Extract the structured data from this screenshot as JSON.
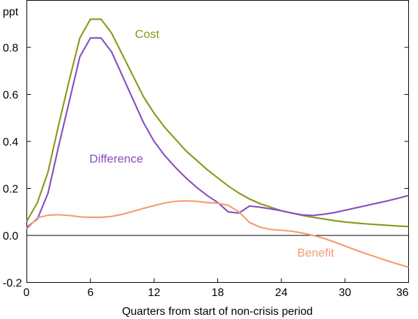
{
  "chart_data": {
    "type": "line",
    "title": "",
    "ylabel": "ppt",
    "xlabel": "Quarters from start of non-crisis period",
    "xlim": [
      0,
      36
    ],
    "ylim": [
      -0.2,
      1.0
    ],
    "x_ticks": [
      0,
      6,
      12,
      18,
      24,
      30,
      36
    ],
    "x_tick_labels": [
      "0",
      "6",
      "12",
      "18",
      "24",
      "30",
      "36"
    ],
    "y_ticks": [
      -0.2,
      0.0,
      0.2,
      0.4,
      0.6,
      0.8
    ],
    "y_tick_labels": [
      "-0.2",
      "0.0",
      "0.2",
      "0.4",
      "0.6",
      "0.8"
    ],
    "zero_line": true,
    "grid": false,
    "series": [
      {
        "name": "Cost",
        "color": "#8a9a1b",
        "label_at": [
          10.2,
          0.84
        ],
        "points": [
          [
            0,
            0.06
          ],
          [
            1,
            0.14
          ],
          [
            2,
            0.27
          ],
          [
            3,
            0.47
          ],
          [
            4,
            0.66
          ],
          [
            5,
            0.84
          ],
          [
            6,
            0.92
          ],
          [
            7,
            0.92
          ],
          [
            8,
            0.86
          ],
          [
            9,
            0.77
          ],
          [
            10,
            0.68
          ],
          [
            11,
            0.59
          ],
          [
            12,
            0.52
          ],
          [
            13,
            0.46
          ],
          [
            14,
            0.41
          ],
          [
            15,
            0.36
          ],
          [
            16,
            0.32
          ],
          [
            17,
            0.28
          ],
          [
            18,
            0.245
          ],
          [
            19,
            0.21
          ],
          [
            20,
            0.18
          ],
          [
            21,
            0.155
          ],
          [
            22,
            0.135
          ],
          [
            23,
            0.12
          ],
          [
            24,
            0.105
          ],
          [
            25,
            0.095
          ],
          [
            26,
            0.085
          ],
          [
            27,
            0.077
          ],
          [
            28,
            0.07
          ],
          [
            29,
            0.063
          ],
          [
            30,
            0.057
          ],
          [
            31,
            0.053
          ],
          [
            32,
            0.049
          ],
          [
            33,
            0.046
          ],
          [
            34,
            0.043
          ],
          [
            35,
            0.04
          ],
          [
            36,
            0.038
          ]
        ]
      },
      {
        "name": "Difference",
        "color": "#8a4fc0",
        "label_at": [
          5.9,
          0.31
        ],
        "points": [
          [
            0,
            0.035
          ],
          [
            1,
            0.07
          ],
          [
            2,
            0.18
          ],
          [
            3,
            0.38
          ],
          [
            4,
            0.57
          ],
          [
            5,
            0.76
          ],
          [
            6,
            0.84
          ],
          [
            7,
            0.84
          ],
          [
            8,
            0.78
          ],
          [
            9,
            0.68
          ],
          [
            10,
            0.58
          ],
          [
            11,
            0.48
          ],
          [
            12,
            0.4
          ],
          [
            13,
            0.34
          ],
          [
            14,
            0.29
          ],
          [
            15,
            0.245
          ],
          [
            16,
            0.205
          ],
          [
            17,
            0.17
          ],
          [
            18,
            0.14
          ],
          [
            19,
            0.1
          ],
          [
            20,
            0.095
          ],
          [
            21,
            0.125
          ],
          [
            22,
            0.12
          ],
          [
            23,
            0.113
          ],
          [
            24,
            0.105
          ],
          [
            25,
            0.095
          ],
          [
            26,
            0.087
          ],
          [
            27,
            0.085
          ],
          [
            28,
            0.09
          ],
          [
            29,
            0.097
          ],
          [
            30,
            0.107
          ],
          [
            31,
            0.117
          ],
          [
            32,
            0.127
          ],
          [
            33,
            0.137
          ],
          [
            34,
            0.147
          ],
          [
            35,
            0.158
          ],
          [
            36,
            0.17
          ]
        ]
      },
      {
        "name": "Benefit",
        "color": "#f49c73",
        "label_at": [
          25.5,
          -0.09
        ],
        "points": [
          [
            0,
            0.027
          ],
          [
            1,
            0.075
          ],
          [
            2,
            0.086
          ],
          [
            3,
            0.088
          ],
          [
            4,
            0.085
          ],
          [
            5,
            0.079
          ],
          [
            6,
            0.077
          ],
          [
            7,
            0.077
          ],
          [
            8,
            0.081
          ],
          [
            9,
            0.09
          ],
          [
            10,
            0.102
          ],
          [
            11,
            0.115
          ],
          [
            12,
            0.127
          ],
          [
            13,
            0.138
          ],
          [
            14,
            0.145
          ],
          [
            15,
            0.147
          ],
          [
            16,
            0.145
          ],
          [
            17,
            0.14
          ],
          [
            18,
            0.137
          ],
          [
            19,
            0.128
          ],
          [
            20,
            0.1
          ],
          [
            21,
            0.055
          ],
          [
            22,
            0.035
          ],
          [
            23,
            0.025
          ],
          [
            24,
            0.022
          ],
          [
            25,
            0.018
          ],
          [
            26,
            0.01
          ],
          [
            27,
            0.0
          ],
          [
            28,
            -0.012
          ],
          [
            29,
            -0.028
          ],
          [
            30,
            -0.045
          ],
          [
            31,
            -0.062
          ],
          [
            32,
            -0.078
          ],
          [
            33,
            -0.093
          ],
          [
            34,
            -0.108
          ],
          [
            35,
            -0.122
          ],
          [
            36,
            -0.135
          ]
        ]
      }
    ]
  }
}
